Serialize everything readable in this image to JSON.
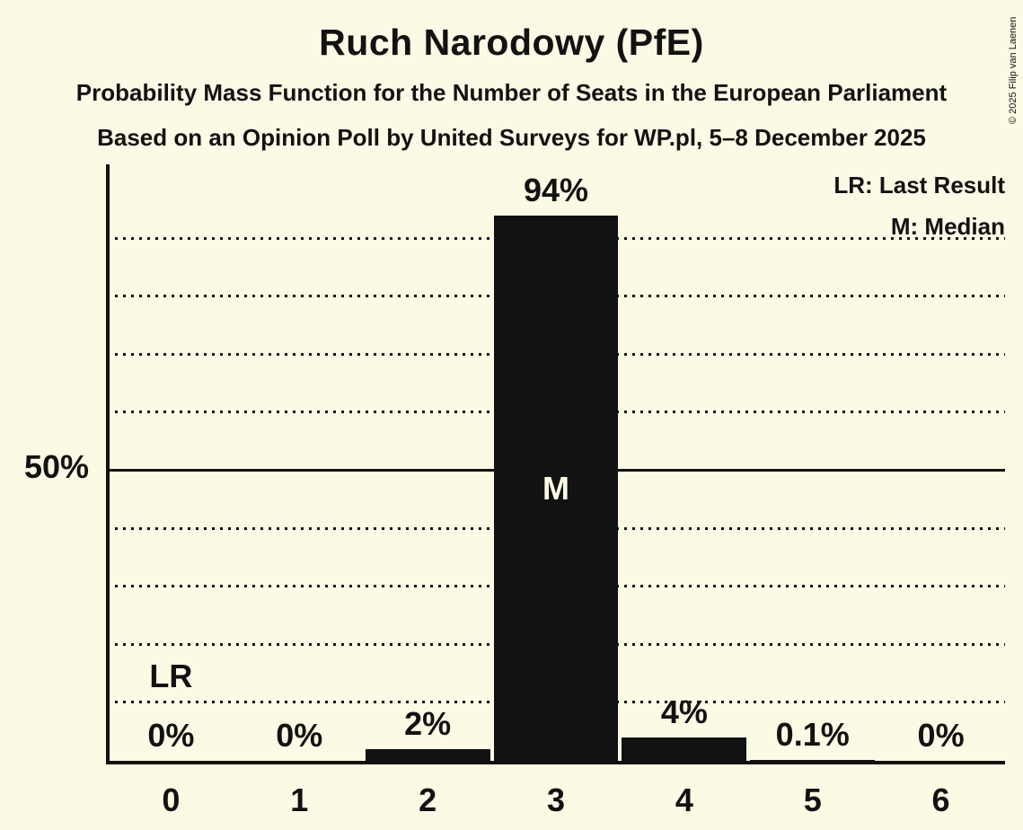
{
  "title": "Ruch Narodowy (PfE)",
  "subtitle1": "Probability Mass Function for the Number of Seats in the European Parliament",
  "subtitle2": "Based on an Opinion Poll by United Surveys for WP.pl, 5–8 December 2025",
  "copyright": "© 2025 Filip van Laenen",
  "legend": {
    "lr": "LR: Last Result",
    "m": "M: Median"
  },
  "y_axis": {
    "label_50": "50%"
  },
  "colors": {
    "background": "#FCF9E4",
    "bar": "#121212",
    "text": "#121212",
    "median_text": "#FCF9E4"
  },
  "chart_data": {
    "type": "bar",
    "title": "Ruch Narodowy (PfE)",
    "xlabel": "",
    "ylabel": "",
    "categories": [
      "0",
      "1",
      "2",
      "3",
      "4",
      "5",
      "6"
    ],
    "values": [
      0,
      0,
      2,
      94,
      4,
      0.1,
      0
    ],
    "bar_labels": [
      "0%",
      "0%",
      "2%",
      "94%",
      "4%",
      "0.1%",
      "0%"
    ],
    "ylim": [
      0,
      100
    ],
    "gridlines_dotted_percent": [
      10,
      20,
      30,
      40,
      60,
      70,
      80,
      90
    ],
    "gridline_solid_percent": 50,
    "grid_on": true,
    "legend_position": "top-right",
    "lr_seat_index": 0,
    "lr_marker_label": "LR",
    "median_seat_index": 3,
    "median_marker_label": "M"
  }
}
